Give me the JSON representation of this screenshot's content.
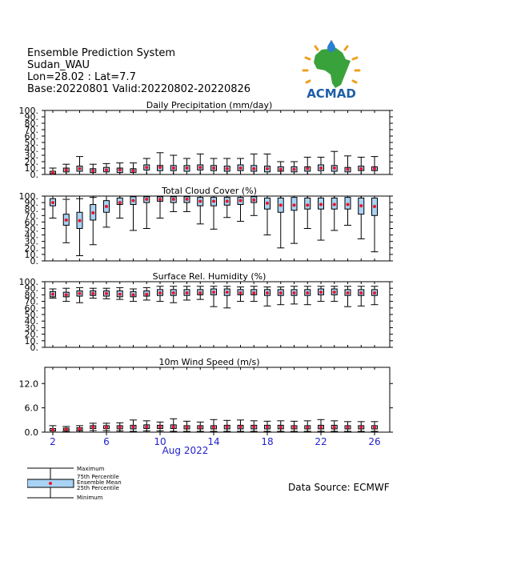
{
  "header": {
    "line1": "Ensemble Prediction System",
    "line2": "Sudan_WAU",
    "line3": "Lon=28.02 : Lat=7.7",
    "line4": "Base:20220801 Valid:20220802-20220826"
  },
  "logo": {
    "text": "ACMAD",
    "colors": {
      "text": "#1f5fa8",
      "africa": "#3aa23a",
      "rays": "#f0a020",
      "drop": "#2a7fd0"
    }
  },
  "source": "Data Source: ECMWF",
  "colors": {
    "box": "#a9d3f5",
    "mean": "#e8142a",
    "axis": "#000000",
    "xlabel": "#2222cc"
  },
  "legend": {
    "maximum": "Maximum",
    "p75": "75th Percentile",
    "mean": "Ensemble Mean",
    "p25": "25th Percentile",
    "minimum": "Minimum"
  },
  "chart_data": [
    {
      "type": "box",
      "title": "Daily Precipitation (mm/day)",
      "ylim": [
        0,
        100
      ],
      "yticks": [
        "0.",
        "10.",
        "20.",
        "30.",
        "40.",
        "50.",
        "60.",
        "70.",
        "80.",
        "90.",
        "100."
      ],
      "ytick_values": [
        0,
        10,
        20,
        30,
        40,
        50,
        60,
        70,
        80,
        90,
        100
      ],
      "x": [
        2,
        3,
        4,
        5,
        6,
        7,
        8,
        9,
        10,
        11,
        12,
        13,
        14,
        15,
        16,
        17,
        18,
        19,
        20,
        21,
        22,
        23,
        24,
        25,
        26
      ],
      "min": [
        0,
        0,
        0,
        0,
        0,
        0,
        0,
        0,
        0,
        0,
        0,
        0,
        0,
        0,
        0,
        0,
        0,
        0,
        0,
        0,
        0,
        0,
        0,
        0,
        0
      ],
      "p25": [
        1,
        4,
        5,
        3,
        4,
        3,
        3,
        7,
        6,
        6,
        5,
        7,
        6,
        5,
        6,
        5,
        4,
        5,
        4,
        5,
        6,
        5,
        4,
        6,
        6
      ],
      "mean": [
        3,
        7,
        9,
        6,
        7,
        7,
        6,
        11,
        11,
        10,
        10,
        11,
        10,
        9,
        10,
        9,
        9,
        8,
        8,
        9,
        10,
        10,
        8,
        9,
        9
      ],
      "p75": [
        5,
        10,
        13,
        9,
        11,
        10,
        9,
        15,
        14,
        14,
        14,
        15,
        14,
        13,
        15,
        14,
        13,
        12,
        12,
        12,
        15,
        14,
        11,
        13,
        12
      ],
      "max": [
        10,
        16,
        28,
        16,
        17,
        18,
        18,
        25,
        34,
        30,
        25,
        32,
        25,
        25,
        25,
        32,
        32,
        20,
        20,
        27,
        27,
        36,
        29,
        27,
        28
      ]
    },
    {
      "type": "box",
      "title": "Total Cloud Cover (%)",
      "ylim": [
        0,
        100
      ],
      "yticks": [
        "0.",
        "10.",
        "20.",
        "30.",
        "40.",
        "50.",
        "60.",
        "70.",
        "80.",
        "90.",
        "100."
      ],
      "ytick_values": [
        0,
        10,
        20,
        30,
        40,
        50,
        60,
        70,
        80,
        90,
        100
      ],
      "x": [
        2,
        3,
        4,
        5,
        6,
        7,
        8,
        9,
        10,
        11,
        12,
        13,
        14,
        15,
        16,
        17,
        18,
        19,
        20,
        21,
        22,
        23,
        24,
        25,
        26
      ],
      "min": [
        66,
        28,
        8,
        25,
        52,
        66,
        47,
        50,
        66,
        76,
        76,
        57,
        49,
        67,
        61,
        70,
        40,
        20,
        27,
        50,
        32,
        47,
        55,
        34,
        14
      ],
      "p25": [
        85,
        55,
        50,
        63,
        75,
        87,
        87,
        90,
        92,
        90,
        90,
        85,
        85,
        86,
        87,
        90,
        80,
        75,
        78,
        80,
        80,
        80,
        80,
        72,
        70
      ],
      "mean": [
        90,
        63,
        62,
        74,
        84,
        90,
        93,
        95,
        95,
        95,
        95,
        92,
        92,
        92,
        93,
        94,
        89,
        86,
        86,
        86,
        87,
        87,
        87,
        85,
        84
      ],
      "p75": [
        96,
        72,
        75,
        87,
        93,
        97,
        99,
        99,
        99,
        99,
        99,
        98,
        98,
        98,
        98,
        99,
        97,
        97,
        98,
        97,
        97,
        97,
        98,
        97,
        97
      ],
      "max": [
        100,
        95,
        96,
        98,
        100,
        100,
        100,
        100,
        100,
        100,
        100,
        100,
        100,
        100,
        100,
        100,
        100,
        100,
        100,
        100,
        100,
        100,
        100,
        100,
        100
      ]
    },
    {
      "type": "box",
      "title": "Surface Rel. Humidity (%)",
      "ylim": [
        0,
        100
      ],
      "yticks": [
        "0.",
        "10.",
        "20.",
        "30.",
        "40.",
        "50.",
        "60.",
        "70.",
        "80.",
        "90.",
        "100."
      ],
      "ytick_values": [
        0,
        10,
        20,
        30,
        40,
        50,
        60,
        70,
        80,
        90,
        100
      ],
      "x": [
        2,
        3,
        4,
        5,
        6,
        7,
        8,
        9,
        10,
        11,
        12,
        13,
        14,
        15,
        16,
        17,
        18,
        19,
        20,
        21,
        22,
        23,
        24,
        25,
        26
      ],
      "min": [
        75,
        70,
        68,
        75,
        74,
        73,
        70,
        72,
        70,
        68,
        72,
        73,
        62,
        60,
        70,
        70,
        63,
        65,
        66,
        65,
        70,
        70,
        62,
        63,
        65
      ],
      "p25": [
        77,
        77,
        78,
        79,
        78,
        77,
        77,
        78,
        79,
        79,
        79,
        80,
        80,
        79,
        80,
        80,
        79,
        79,
        79,
        79,
        80,
        80,
        79,
        79,
        79
      ],
      "mean": [
        81,
        80,
        82,
        82,
        82,
        81,
        80,
        81,
        83,
        83,
        83,
        83,
        84,
        84,
        83,
        83,
        83,
        83,
        83,
        83,
        84,
        84,
        83,
        83,
        83
      ],
      "p75": [
        85,
        84,
        86,
        86,
        86,
        86,
        85,
        86,
        88,
        88,
        88,
        88,
        89,
        89,
        88,
        88,
        88,
        88,
        88,
        88,
        89,
        89,
        88,
        88,
        88
      ],
      "max": [
        89,
        90,
        91,
        90,
        90,
        91,
        89,
        91,
        93,
        93,
        93,
        93,
        93,
        93,
        92,
        93,
        92,
        92,
        93,
        93,
        93,
        93,
        93,
        93,
        93
      ]
    },
    {
      "type": "box",
      "title": "10m Wind Speed (m/s)",
      "ylim": [
        0,
        16
      ],
      "yticks": [
        "0.0",
        "6.0",
        "12.0"
      ],
      "ytick_values": [
        0,
        6,
        12
      ],
      "xlabel": "Aug 2022",
      "xticks": [
        "2",
        "6",
        "10",
        "14",
        "18",
        "22",
        "26"
      ],
      "xtick_values": [
        2,
        6,
        10,
        14,
        18,
        22,
        26
      ],
      "x": [
        2,
        3,
        4,
        5,
        6,
        7,
        8,
        9,
        10,
        11,
        12,
        13,
        14,
        15,
        16,
        17,
        18,
        19,
        20,
        21,
        22,
        23,
        24,
        25,
        26
      ],
      "min": [
        0,
        0.2,
        0.3,
        0.4,
        0.4,
        0.3,
        0.2,
        0.3,
        0.3,
        0.2,
        0.2,
        0.2,
        0.2,
        0.2,
        0.2,
        0.2,
        0.2,
        0.2,
        0.2,
        0.2,
        0.2,
        0.2,
        0.2,
        0.2,
        0.2
      ],
      "p25": [
        0.3,
        0.5,
        0.6,
        0.9,
        0.9,
        0.8,
        0.8,
        0.9,
        0.9,
        0.9,
        0.8,
        0.8,
        0.8,
        0.8,
        0.8,
        0.8,
        0.8,
        0.8,
        0.8,
        0.8,
        0.8,
        0.8,
        0.8,
        0.8,
        0.8
      ],
      "mean": [
        0.6,
        0.7,
        0.8,
        1.2,
        1.2,
        1.2,
        1.3,
        1.3,
        1.3,
        1.3,
        1.2,
        1.2,
        1.2,
        1.3,
        1.3,
        1.3,
        1.3,
        1.2,
        1.2,
        1.2,
        1.2,
        1.2,
        1.2,
        1.2,
        1.2
      ],
      "p75": [
        0.9,
        1.0,
        1.1,
        1.6,
        1.6,
        1.6,
        1.7,
        1.8,
        1.7,
        1.8,
        1.6,
        1.6,
        1.6,
        1.7,
        1.7,
        1.7,
        1.7,
        1.7,
        1.6,
        1.6,
        1.7,
        1.7,
        1.6,
        1.6,
        1.6
      ],
      "max": [
        1.6,
        1.4,
        1.6,
        2.2,
        2.2,
        2.3,
        3.0,
        2.8,
        2.5,
        3.3,
        2.7,
        2.5,
        3.1,
        2.9,
        3.0,
        2.8,
        2.7,
        2.8,
        2.7,
        2.8,
        3.1,
        2.8,
        2.6,
        2.6,
        2.6
      ]
    }
  ]
}
